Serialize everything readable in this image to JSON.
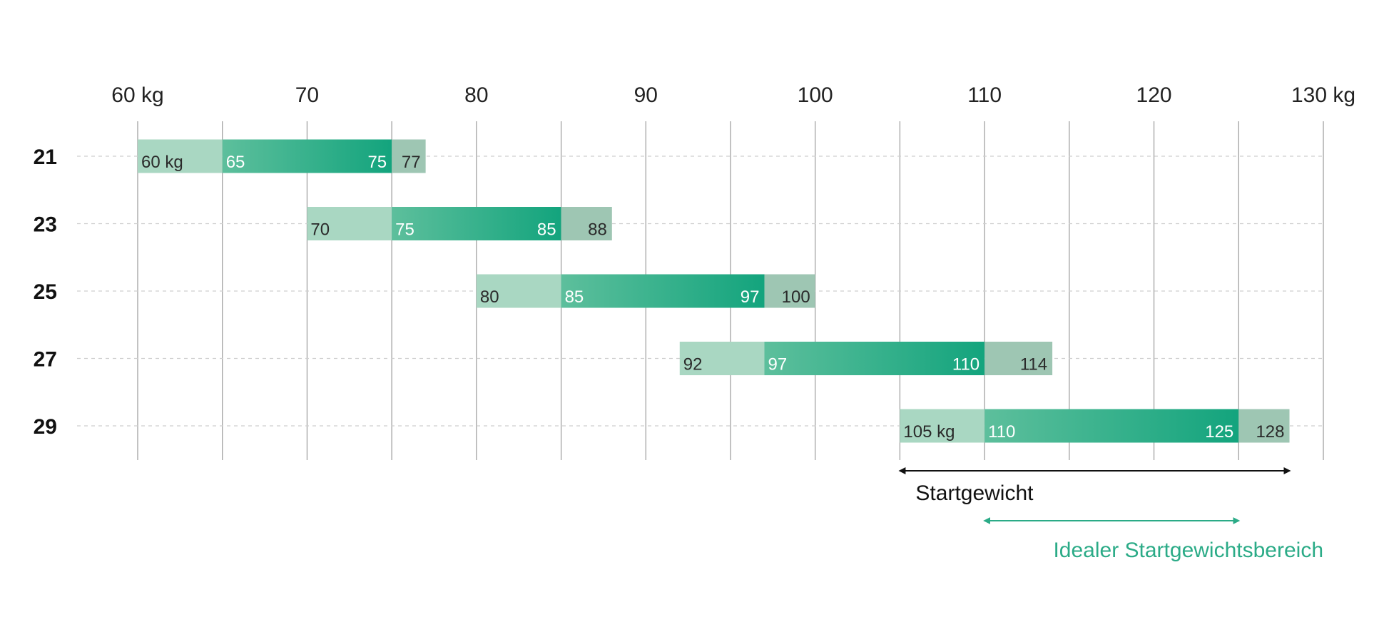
{
  "chart_data": {
    "type": "range-bar",
    "title": "",
    "x_axis": {
      "unit": "kg",
      "range": [
        60,
        130
      ],
      "ticks": [
        60,
        70,
        80,
        90,
        100,
        110,
        120,
        130
      ],
      "tick_labels": [
        "60 kg",
        "70",
        "80",
        "90",
        "100",
        "110",
        "120",
        "130 kg"
      ]
    },
    "rows": [
      {
        "category": "21",
        "start": 60,
        "ideal_start": 65,
        "ideal_end": 75,
        "end": 77,
        "labels": [
          "60 kg",
          "65",
          "75",
          "77"
        ]
      },
      {
        "category": "23",
        "start": 70,
        "ideal_start": 75,
        "ideal_end": 85,
        "end": 88,
        "labels": [
          "70",
          "75",
          "85",
          "88"
        ]
      },
      {
        "category": "25",
        "start": 80,
        "ideal_start": 85,
        "ideal_end": 97,
        "end": 100,
        "labels": [
          "80",
          "85",
          "97",
          "100"
        ]
      },
      {
        "category": "27",
        "start": 92,
        "ideal_start": 97,
        "ideal_end": 110,
        "end": 114,
        "labels": [
          "92",
          "97",
          "110",
          "114"
        ]
      },
      {
        "category": "29",
        "start": 105,
        "ideal_start": 110,
        "ideal_end": 125,
        "end": 128,
        "labels": [
          "105 kg",
          "110",
          "125",
          "128"
        ]
      }
    ],
    "legend": [
      {
        "label": "Startgewicht",
        "from": 105,
        "to": 128,
        "color": "#111111"
      },
      {
        "label": "Idealer Startgewichtsbereich",
        "from": 110,
        "to": 125,
        "color": "#2bab87"
      }
    ]
  },
  "colors": {
    "range_light": "#a9d7c2",
    "ideal_start": "#5dbf9c",
    "ideal_end": "#13a47d",
    "range_tail": "#9ec6b3",
    "accent_text": "#2bab87",
    "gridline": "#9a9a9a",
    "dashed": "#cfcfcf"
  }
}
